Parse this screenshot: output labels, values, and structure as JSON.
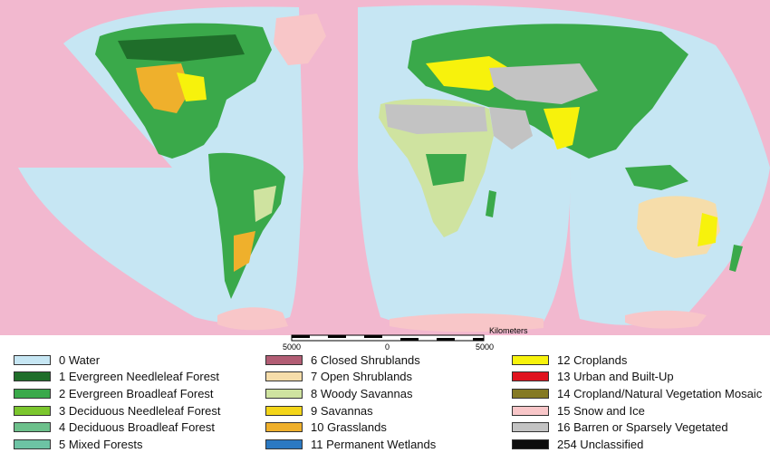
{
  "colors": {
    "background": "#f2b8cf",
    "water": "#c6e6f3",
    "frame": "#ffffff"
  },
  "scale_bar": {
    "unit": "Kilometers",
    "left_tick": "5000",
    "center_tick": "0",
    "right_tick": "5000"
  },
  "legend": {
    "columns": [
      [
        {
          "label": "0 Water",
          "color": "#c6e6f3"
        },
        {
          "label": "1 Evergreen Needleleaf Forest",
          "color": "#1f6e2a"
        },
        {
          "label": "2 Evergreen Broadleaf Forest",
          "color": "#3aa94a"
        },
        {
          "label": "3 Deciduous Needleleaf Forest",
          "color": "#7bc62d"
        },
        {
          "label": "4 Deciduous Broadleaf Forest",
          "color": "#6cc08b"
        },
        {
          "label": "5 Mixed Forests",
          "color": "#6dc3a4"
        }
      ],
      [
        {
          "label": "6 Closed Shrublands",
          "color": "#b25d74"
        },
        {
          "label": "7 Open Shrublands",
          "color": "#f6ddaa"
        },
        {
          "label": "8 Woody Savannas",
          "color": "#cfe3a0"
        },
        {
          "label": "9 Savannas",
          "color": "#f3d519"
        },
        {
          "label": "10 Grasslands",
          "color": "#efb02c"
        },
        {
          "label": "11 Permanent Wetlands",
          "color": "#2b79c2"
        }
      ],
      [
        {
          "label": "12 Croplands",
          "color": "#f7f20c"
        },
        {
          "label": "13 Urban and Built-Up",
          "color": "#e0131f"
        },
        {
          "label": "14 Cropland/Natural Vegetation Mosaic",
          "color": "#857a24"
        },
        {
          "label": "15 Snow and Ice",
          "color": "#f8c6c8"
        },
        {
          "label": "16 Barren or Sparsely Vegetated",
          "color": "#c3c3c3"
        },
        {
          "label": "254 Unclassified",
          "color": "#0d0d0d"
        }
      ]
    ]
  }
}
